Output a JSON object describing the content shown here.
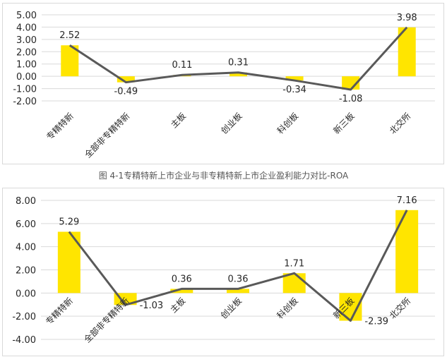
{
  "caption": "图 4-1专精特新上市企业与非专精特新上市企业盈利能力对比-ROA",
  "colors": {
    "bar": "#FFE500",
    "line": "#595959",
    "grid": "#d9d9d9",
    "text": "#262626"
  },
  "chart_data": [
    {
      "type": "bar+line",
      "categories": [
        "专精特新",
        "全部非专精特新",
        "主板",
        "创业板",
        "科创板",
        "新三板",
        "北交所"
      ],
      "series": [
        {
          "name": "bar",
          "values": [
            2.52,
            -0.49,
            0.11,
            0.31,
            -0.34,
            -1.08,
            3.98
          ]
        },
        {
          "name": "line",
          "values": [
            2.52,
            -0.49,
            0.11,
            0.31,
            -0.34,
            -1.08,
            3.98
          ]
        }
      ],
      "data_labels": [
        "2.52",
        "-0.49",
        "0.11",
        "0.31",
        "-0.34",
        "-1.08",
        "3.98"
      ],
      "ylim": [
        -2,
        5
      ],
      "yticks": [
        "5.00",
        "4.00",
        "3.00",
        "2.00",
        "1.00",
        "0.00",
        "-1.00",
        "-2.00"
      ],
      "ytick_values": [
        5,
        4,
        3,
        2,
        1,
        0,
        -1,
        -2
      ],
      "grid": true
    },
    {
      "type": "bar+line",
      "categories": [
        "专精特新",
        "全部非专精特新",
        "主板",
        "创业板",
        "科创板",
        "新三板",
        "北交所"
      ],
      "series": [
        {
          "name": "bar",
          "values": [
            5.29,
            -1.03,
            0.36,
            0.36,
            1.71,
            -2.39,
            7.16
          ]
        },
        {
          "name": "line",
          "values": [
            5.29,
            -1.03,
            0.36,
            0.36,
            1.71,
            -2.39,
            7.16
          ]
        }
      ],
      "data_labels": [
        "5.29",
        "-1.03",
        "0.36",
        "0.36",
        "1.71",
        "-2.39",
        "7.16"
      ],
      "ylim": [
        -4,
        8
      ],
      "yticks": [
        "8.00",
        "6.00",
        "4.00",
        "2.00",
        "0.00",
        "-2.00",
        "-4.00"
      ],
      "ytick_values": [
        8,
        6,
        4,
        2,
        0,
        -2,
        -4
      ],
      "grid": true
    }
  ]
}
